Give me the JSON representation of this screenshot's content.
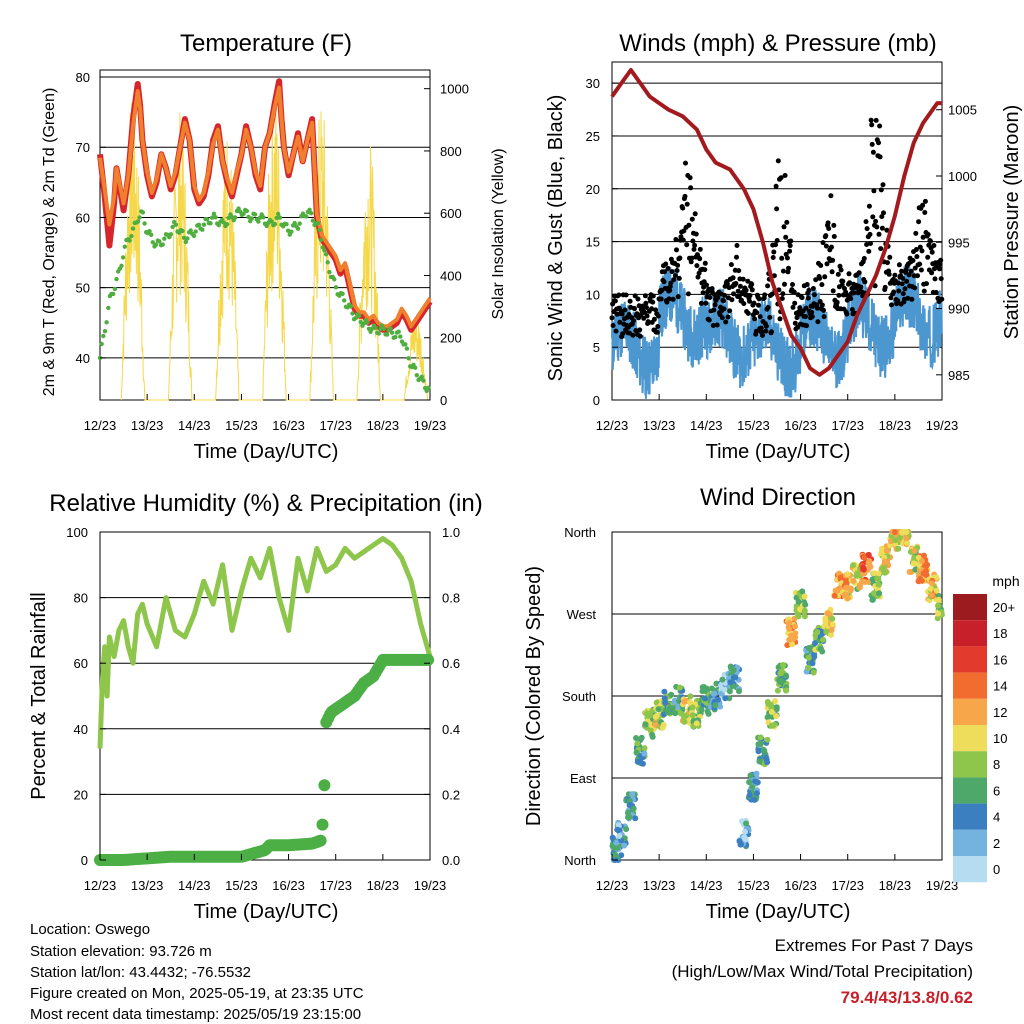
{
  "chart_data": [
    {
      "type": "line",
      "title": "Temperature (F)",
      "xlabel": "Time (Day/UTC)",
      "ylabel": "2m & 9m T (Red, Orange) & 2m Td (Green)",
      "y2label": "Solar Insolation (Yellow)",
      "x_ticks": [
        "12/23",
        "13/23",
        "14/23",
        "15/23",
        "16/23",
        "17/23",
        "18/23",
        "19/23"
      ],
      "y_ticks": [
        40,
        50,
        60,
        70,
        80
      ],
      "y2_ticks": [
        0,
        200,
        400,
        600,
        800,
        1000
      ],
      "ylim": [
        34,
        81
      ],
      "y2lim": [
        0,
        1060
      ],
      "series": [
        {
          "name": "2m T",
          "color": "#d7262b",
          "x": [
            0,
            0.1,
            0.2,
            0.3,
            0.35,
            0.5,
            0.6,
            0.7,
            0.8,
            0.85,
            0.9,
            1.0,
            1.1,
            1.2,
            1.3,
            1.4,
            1.5,
            1.6,
            1.7,
            1.8,
            1.9,
            2.0,
            2.1,
            2.2,
            2.3,
            2.4,
            2.5,
            2.6,
            2.7,
            2.8,
            2.9,
            3.0,
            3.1,
            3.2,
            3.3,
            3.4,
            3.5,
            3.6,
            3.7,
            3.8,
            3.85,
            3.9,
            4.0,
            4.1,
            4.2,
            4.3,
            4.4,
            4.5,
            4.6,
            4.7,
            4.8,
            4.9,
            5.0,
            5.1,
            5.2,
            5.3,
            5.4,
            5.5,
            5.6,
            5.7,
            5.8,
            5.9,
            6.0,
            6.1,
            6.2,
            6.3,
            6.4,
            6.5,
            6.6,
            6.7,
            6.8,
            6.9,
            7.0
          ],
          "y": [
            69,
            63,
            56,
            62,
            67,
            61,
            66,
            74,
            79,
            76,
            71,
            66,
            63,
            65,
            69,
            67,
            64,
            66,
            70,
            74,
            71,
            64,
            62,
            63,
            66,
            71,
            73,
            68,
            65,
            63,
            66,
            69,
            73,
            70,
            66,
            64,
            70,
            72,
            76,
            79.4,
            74,
            70,
            66,
            69,
            72,
            68,
            71,
            74,
            60,
            57,
            56,
            55,
            54,
            52,
            53,
            50,
            47,
            46,
            46,
            45,
            45.5,
            44.5,
            44,
            44,
            44.5,
            45,
            46.5,
            45.5,
            44,
            45,
            46,
            47,
            48
          ]
        },
        {
          "name": "9m T",
          "color": "#f07f2e",
          "x": [
            0,
            0.1,
            0.2,
            0.3,
            0.35,
            0.5,
            0.6,
            0.7,
            0.8,
            0.85,
            0.9,
            1.0,
            1.1,
            1.2,
            1.3,
            1.4,
            1.5,
            1.6,
            1.7,
            1.8,
            1.9,
            2.0,
            2.1,
            2.2,
            2.3,
            2.4,
            2.5,
            2.6,
            2.7,
            2.8,
            2.9,
            3.0,
            3.1,
            3.2,
            3.3,
            3.4,
            3.5,
            3.6,
            3.7,
            3.8,
            3.85,
            3.9,
            4.0,
            4.1,
            4.2,
            4.3,
            4.4,
            4.5,
            4.6,
            4.7,
            4.8,
            4.9,
            5.0,
            5.1,
            5.2,
            5.3,
            5.4,
            5.5,
            5.6,
            5.7,
            5.8,
            5.9,
            6.0,
            6.1,
            6.2,
            6.3,
            6.4,
            6.5,
            6.6,
            6.7,
            6.8,
            6.9,
            7.0
          ],
          "y": [
            68.5,
            64,
            59,
            63,
            67,
            62,
            66,
            73,
            78,
            75.5,
            71,
            66.5,
            63.5,
            65.5,
            69,
            67,
            64.5,
            66.5,
            70,
            73.5,
            71,
            64.5,
            62.5,
            63.5,
            66.5,
            70.5,
            72.5,
            68,
            65.5,
            63.5,
            66.5,
            69,
            72.5,
            70,
            66.5,
            64.5,
            70,
            72,
            75.5,
            78.5,
            74,
            70,
            66.5,
            69,
            71.5,
            68,
            71,
            73.5,
            60.5,
            57.5,
            56.5,
            55.5,
            54.5,
            52.5,
            53.5,
            50.5,
            47.5,
            46.5,
            46.5,
            45.5,
            46,
            45,
            44.5,
            44.5,
            45,
            45.5,
            47,
            46,
            44.5,
            45.5,
            46.5,
            47.5,
            48.5
          ]
        },
        {
          "name": "2m Td",
          "color": "#4fae3f",
          "x": [
            0,
            0.1,
            0.2,
            0.3,
            0.4,
            0.5,
            0.6,
            0.7,
            0.8,
            0.9,
            1.0,
            1.2,
            1.4,
            1.6,
            1.8,
            2.0,
            2.2,
            2.4,
            2.6,
            2.8,
            3.0,
            3.2,
            3.4,
            3.6,
            3.8,
            4.0,
            4.2,
            4.4,
            4.6,
            4.7,
            4.8,
            4.9,
            5.0,
            5.2,
            5.4,
            5.6,
            5.8,
            6.0,
            6.2,
            6.4,
            6.5,
            6.6,
            6.7,
            6.8,
            6.9,
            7.0
          ],
          "y": [
            40,
            44,
            48,
            50,
            52,
            55,
            57,
            58,
            60,
            60.5,
            58,
            56,
            57,
            59,
            57,
            58,
            59,
            60,
            59,
            60,
            61,
            60,
            60,
            59,
            60,
            58,
            59,
            61,
            59,
            57,
            54,
            52,
            50,
            48,
            46,
            45,
            44,
            44,
            43.5,
            43,
            41,
            39,
            38,
            37,
            36,
            35.5
          ]
        }
      ],
      "y2_series": {
        "name": "Solar Insolation",
        "color": "#f5d84a",
        "description_days": [
          0,
          1,
          2,
          3,
          4,
          5,
          6,
          7
        ],
        "peaks": [
          1000,
          950,
          900,
          1020,
          980,
          860,
          300,
          1000
        ]
      }
    },
    {
      "type": "scatter",
      "title": "Winds (mph) & Pressure (mb)",
      "xlabel": "Time (Day/UTC)",
      "ylabel": "Sonic Wind & Gust (Blue, Black)",
      "y2label": "Station Pressure (Maroon)",
      "x_ticks": [
        "12/23",
        "13/23",
        "14/23",
        "15/23",
        "16/23",
        "17/23",
        "18/23",
        "19/23"
      ],
      "y_ticks": [
        0,
        5,
        10,
        15,
        20,
        25,
        30
      ],
      "y2_ticks": [
        985,
        990,
        995,
        1000,
        1005
      ],
      "ylim": [
        0,
        32
      ],
      "y2lim": [
        983.1,
        1008.6
      ],
      "series": [
        {
          "name": "Sonic Wind",
          "color": "#4d97d0",
          "day_means": [
            5,
            8,
            6,
            5,
            6,
            7,
            8,
            9
          ]
        },
        {
          "name": "Gust",
          "color": "#000000",
          "day_peaks": [
            8,
            22,
            13,
            24,
            18,
            30,
            20,
            20
          ]
        },
        {
          "name": "Station Pressure",
          "color": "#a31a1e",
          "x": [
            0,
            0.1,
            0.2,
            0.3,
            0.4,
            0.5,
            0.6,
            0.8,
            1.0,
            1.2,
            1.5,
            1.8,
            2.0,
            2.2,
            2.5,
            2.8,
            3.0,
            3.2,
            3.4,
            3.6,
            3.8,
            4.0,
            4.2,
            4.4,
            4.6,
            4.8,
            5.0,
            5.2,
            5.4,
            5.6,
            5.8,
            6.0,
            6.2,
            6.4,
            6.6,
            6.8,
            6.9,
            7.0
          ],
          "y": [
            1006,
            1006.5,
            1007,
            1007.5,
            1008,
            1007.5,
            1007,
            1006,
            1005.5,
            1005,
            1004.5,
            1003.5,
            1002,
            1001,
            1000.5,
            999,
            997.5,
            995,
            992,
            990,
            988,
            987,
            985.5,
            985,
            985.5,
            986.5,
            987.5,
            989.5,
            991,
            992.5,
            994.5,
            997,
            1000,
            1002.5,
            1004,
            1005,
            1005.5,
            1005.5
          ]
        }
      ]
    },
    {
      "type": "line",
      "title": "Relative Humidity (%) & Precipitation (in)",
      "xlabel": "Time (Day/UTC)",
      "ylabel": "Percent & Total Rainfall",
      "x_ticks": [
        "12/23",
        "13/23",
        "14/23",
        "15/23",
        "16/23",
        "17/23",
        "18/23",
        "19/23"
      ],
      "y_ticks": [
        0,
        20,
        40,
        60,
        80,
        100
      ],
      "y2_ticks": [
        "0.0",
        "0.2",
        "0.4",
        "0.6",
        "0.8",
        "1.0"
      ],
      "ylim": [
        0,
        100
      ],
      "y2lim": [
        0,
        1.0
      ],
      "series": [
        {
          "name": "Relative Humidity",
          "color": "#8dc64b",
          "x": [
            0,
            0.05,
            0.1,
            0.15,
            0.2,
            0.3,
            0.4,
            0.5,
            0.6,
            0.7,
            0.8,
            0.9,
            1.0,
            1.2,
            1.4,
            1.6,
            1.8,
            2.0,
            2.2,
            2.4,
            2.6,
            2.8,
            3.0,
            3.2,
            3.4,
            3.6,
            3.8,
            4.0,
            4.2,
            4.4,
            4.6,
            4.8,
            5.0,
            5.2,
            5.4,
            5.6,
            5.8,
            6.0,
            6.2,
            6.4,
            6.6,
            6.8,
            7.0
          ],
          "y": [
            34,
            55,
            65,
            50,
            68,
            62,
            70,
            73,
            65,
            60,
            75,
            78,
            72,
            65,
            80,
            70,
            68,
            75,
            85,
            78,
            90,
            70,
            82,
            92,
            86,
            95,
            80,
            70,
            92,
            82,
            95,
            88,
            90,
            95,
            92,
            94,
            96,
            98,
            96,
            92,
            85,
            72,
            62
          ]
        },
        {
          "name": "Total Precipitation",
          "color": "#4caf45",
          "x": [
            0,
            0.5,
            1.0,
            1.5,
            2.0,
            2.5,
            3.0,
            3.5,
            3.6,
            4.0,
            4.5,
            4.7,
            4.75,
            4.8,
            4.9,
            5.0,
            5.2,
            5.4,
            5.6,
            5.8,
            6.0,
            6.5,
            7.0
          ],
          "y": [
            0,
            0,
            0.005,
            0.01,
            0.01,
            0.01,
            0.01,
            0.03,
            0.045,
            0.045,
            0.05,
            0.06,
            0.18,
            0.42,
            0.45,
            0.46,
            0.48,
            0.5,
            0.54,
            0.56,
            0.61,
            0.61,
            0.61
          ]
        }
      ]
    },
    {
      "type": "scatter",
      "title": "Wind Direction",
      "xlabel": "Time (Day/UTC)",
      "ylabel": "Direction (Colored By Speed)",
      "x_ticks": [
        "12/23",
        "13/23",
        "14/23",
        "15/23",
        "16/23",
        "17/23",
        "18/23",
        "19/23"
      ],
      "y_ticks": [
        "North",
        "East",
        "South",
        "West",
        "North"
      ],
      "ylim": [
        0,
        360
      ],
      "colorbar": {
        "unit": "mph",
        "labels": [
          "20+",
          "18",
          "16",
          "14",
          "12",
          "10",
          "8",
          "6",
          "4",
          "2",
          "0"
        ],
        "colors": [
          "#9b1b1f",
          "#c8202a",
          "#e23b2d",
          "#f26b2f",
          "#f7a64a",
          "#eedd5a",
          "#8dc64b",
          "#4ea86a",
          "#3b7fc1",
          "#74b3e0",
          "#b6dcf2"
        ]
      },
      "points": [
        [
          0.1,
          10,
          4
        ],
        [
          0.2,
          30,
          3
        ],
        [
          0.4,
          60,
          4
        ],
        [
          0.6,
          120,
          5
        ],
        [
          0.8,
          150,
          8
        ],
        [
          1.0,
          160,
          9
        ],
        [
          1.2,
          170,
          6
        ],
        [
          1.4,
          175,
          5
        ],
        [
          1.6,
          165,
          9
        ],
        [
          1.8,
          160,
          8
        ],
        [
          2.0,
          175,
          5
        ],
        [
          2.2,
          180,
          4
        ],
        [
          2.4,
          190,
          3
        ],
        [
          2.6,
          200,
          4
        ],
        [
          2.8,
          30,
          3
        ],
        [
          3.0,
          80,
          4
        ],
        [
          3.2,
          120,
          5
        ],
        [
          3.4,
          160,
          8
        ],
        [
          3.6,
          200,
          6
        ],
        [
          3.8,
          250,
          12
        ],
        [
          4.0,
          280,
          8
        ],
        [
          4.2,
          220,
          5
        ],
        [
          4.4,
          240,
          7
        ],
        [
          4.6,
          260,
          10
        ],
        [
          4.8,
          300,
          13
        ],
        [
          5.0,
          300,
          11
        ],
        [
          5.2,
          310,
          9
        ],
        [
          5.4,
          320,
          14
        ],
        [
          5.6,
          300,
          8
        ],
        [
          5.8,
          330,
          10
        ],
        [
          6.0,
          355,
          11
        ],
        [
          6.2,
          360,
          10
        ],
        [
          6.4,
          330,
          9
        ],
        [
          6.6,
          320,
          12
        ],
        [
          6.8,
          300,
          11
        ],
        [
          7.0,
          280,
          8
        ]
      ]
    }
  ],
  "info": {
    "location": "Location: Oswego",
    "elevation": "Station elevation: 93.726 m",
    "latlon": "Station lat/lon: 43.4432; -76.5532",
    "created": "Figure created on Mon, 2025-05-19, at 23:35 UTC",
    "recent": "Most recent data timestamp: 2025/05/19 23:15:00"
  },
  "extremes": {
    "line1": "Extremes For Past 7 Days",
    "line2": "(High/Low/Max Wind/Total Precipitation)",
    "value": "79.4/43/13.8/0.62"
  }
}
